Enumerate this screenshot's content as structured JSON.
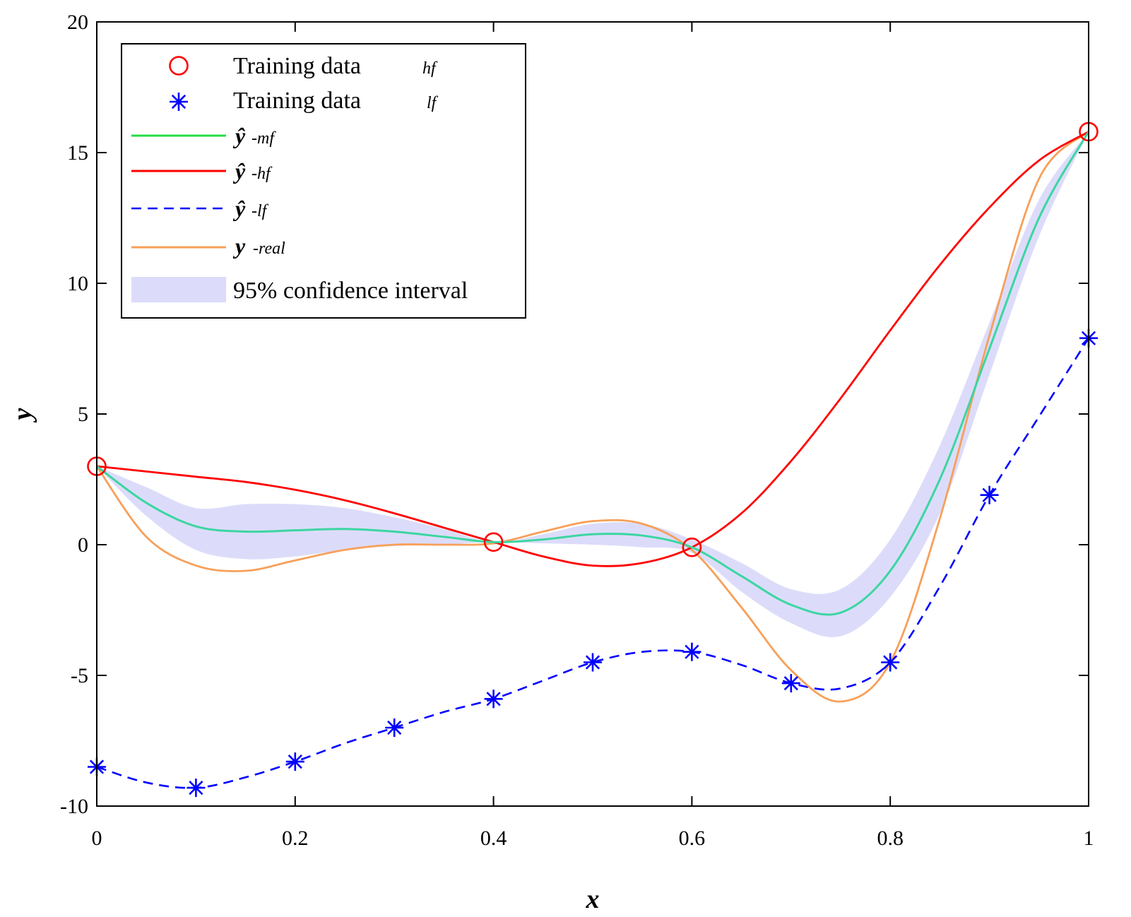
{
  "chart_data": {
    "type": "line",
    "title": "",
    "xlabel": "x",
    "ylabel": "y",
    "xlim": [
      0,
      1
    ],
    "ylim": [
      -10,
      20
    ],
    "xticks": [
      0,
      0.2,
      0.4,
      0.6,
      0.8,
      1
    ],
    "xtick_labels": [
      "0",
      "0.2",
      "0.4",
      "0.6",
      "0.8",
      "1"
    ],
    "yticks": [
      -10,
      -5,
      0,
      5,
      10,
      15,
      20
    ],
    "ytick_labels": [
      "-10",
      "-5",
      "0",
      "5",
      "10",
      "15",
      "20"
    ],
    "grid": false,
    "legend_position": "top-left",
    "colors": {
      "hf": "#ff0000",
      "lf": "#0000ff",
      "mf": "#3cd6a0",
      "mf_legend": "#22dd44",
      "real": "#f7a05a",
      "ci": "#dcdcfa"
    },
    "legend": [
      {
        "key": "hf_points",
        "label": "Training data",
        "sub": "hf"
      },
      {
        "key": "lf_points",
        "label": "Training data",
        "sub": "lf"
      },
      {
        "key": "mf",
        "label": "ŷ",
        "sub": "-mf"
      },
      {
        "key": "hf",
        "label": "ŷ",
        "sub": "-hf"
      },
      {
        "key": "lf",
        "label": "ŷ",
        "sub": "-lf"
      },
      {
        "key": "real",
        "label": "y",
        "sub": "-real"
      },
      {
        "key": "ci",
        "label": "95% confidence interval",
        "sub": ""
      }
    ],
    "series": [
      {
        "name": "Training data hf",
        "kind": "points",
        "marker": "circle",
        "x": [
          0,
          0.4,
          0.6,
          1
        ],
        "y": [
          3.0,
          0.1,
          -0.1,
          15.8
        ]
      },
      {
        "name": "Training data lf",
        "kind": "points",
        "marker": "asterisk",
        "x": [
          0,
          0.1,
          0.2,
          0.3,
          0.4,
          0.5,
          0.6,
          0.7,
          0.8,
          0.9,
          1.0
        ],
        "y": [
          -8.5,
          -9.3,
          -8.3,
          -7.0,
          -5.9,
          -4.5,
          -4.1,
          -5.3,
          -4.5,
          1.9,
          7.9
        ]
      },
      {
        "name": "ŷ-mf",
        "kind": "line",
        "x": [
          0,
          0.05,
          0.1,
          0.15,
          0.2,
          0.25,
          0.3,
          0.35,
          0.4,
          0.45,
          0.5,
          0.55,
          0.6,
          0.65,
          0.7,
          0.75,
          0.8,
          0.85,
          0.9,
          0.95,
          1.0
        ],
        "y": [
          3.0,
          1.6,
          0.7,
          0.5,
          0.55,
          0.6,
          0.5,
          0.3,
          0.1,
          0.2,
          0.4,
          0.35,
          -0.1,
          -1.2,
          -2.3,
          -2.6,
          -1.0,
          2.5,
          7.5,
          12.5,
          15.8
        ]
      },
      {
        "name": "ŷ-hf",
        "kind": "line",
        "x": [
          0,
          0.05,
          0.1,
          0.15,
          0.2,
          0.25,
          0.3,
          0.35,
          0.4,
          0.45,
          0.5,
          0.55,
          0.6,
          0.65,
          0.7,
          0.75,
          0.8,
          0.85,
          0.9,
          0.95,
          1.0
        ],
        "y": [
          3.0,
          2.8,
          2.6,
          2.4,
          2.1,
          1.7,
          1.2,
          0.65,
          0.1,
          -0.45,
          -0.8,
          -0.7,
          -0.1,
          1.2,
          3.2,
          5.6,
          8.2,
          10.7,
          12.9,
          14.7,
          15.8
        ]
      },
      {
        "name": "ŷ-lf",
        "kind": "line",
        "dashed": true,
        "x": [
          0,
          0.05,
          0.1,
          0.15,
          0.2,
          0.25,
          0.3,
          0.35,
          0.4,
          0.45,
          0.5,
          0.55,
          0.6,
          0.65,
          0.7,
          0.75,
          0.8,
          0.85,
          0.9,
          0.95,
          1.0
        ],
        "y": [
          -8.5,
          -9.1,
          -9.3,
          -8.9,
          -8.3,
          -7.6,
          -7.0,
          -6.4,
          -5.9,
          -5.2,
          -4.5,
          -4.1,
          -4.1,
          -4.6,
          -5.3,
          -5.5,
          -4.5,
          -1.6,
          1.9,
          4.9,
          7.9
        ]
      },
      {
        "name": "y-real",
        "kind": "line",
        "x": [
          0,
          0.05,
          0.1,
          0.15,
          0.2,
          0.25,
          0.3,
          0.35,
          0.4,
          0.45,
          0.5,
          0.55,
          0.6,
          0.65,
          0.7,
          0.75,
          0.8,
          0.85,
          0.9,
          0.95,
          1.0
        ],
        "y": [
          3.0,
          0.3,
          -0.8,
          -1.0,
          -0.6,
          -0.2,
          0.0,
          0.0,
          0.05,
          0.5,
          0.9,
          0.8,
          -0.2,
          -2.4,
          -4.8,
          -6.0,
          -4.5,
          1.0,
          8.0,
          14.0,
          15.8
        ]
      },
      {
        "name": "95% confidence interval",
        "kind": "band",
        "x": [
          0,
          0.05,
          0.1,
          0.15,
          0.2,
          0.25,
          0.3,
          0.35,
          0.4,
          0.45,
          0.5,
          0.55,
          0.6,
          0.65,
          0.7,
          0.75,
          0.8,
          0.85,
          0.9,
          0.95,
          1.0
        ],
        "lower": [
          3.0,
          1.1,
          -0.2,
          -0.55,
          -0.45,
          -0.2,
          -0.05,
          0.0,
          0.1,
          0.05,
          0.0,
          -0.1,
          -0.3,
          -1.8,
          -3.0,
          -3.5,
          -2.0,
          1.2,
          6.5,
          11.8,
          15.8
        ],
        "upper": [
          3.0,
          2.2,
          1.4,
          1.55,
          1.55,
          1.4,
          1.05,
          0.6,
          0.1,
          0.4,
          0.8,
          0.8,
          0.2,
          -0.7,
          -1.7,
          -1.7,
          0.2,
          3.8,
          8.5,
          13.2,
          15.8
        ]
      }
    ]
  }
}
